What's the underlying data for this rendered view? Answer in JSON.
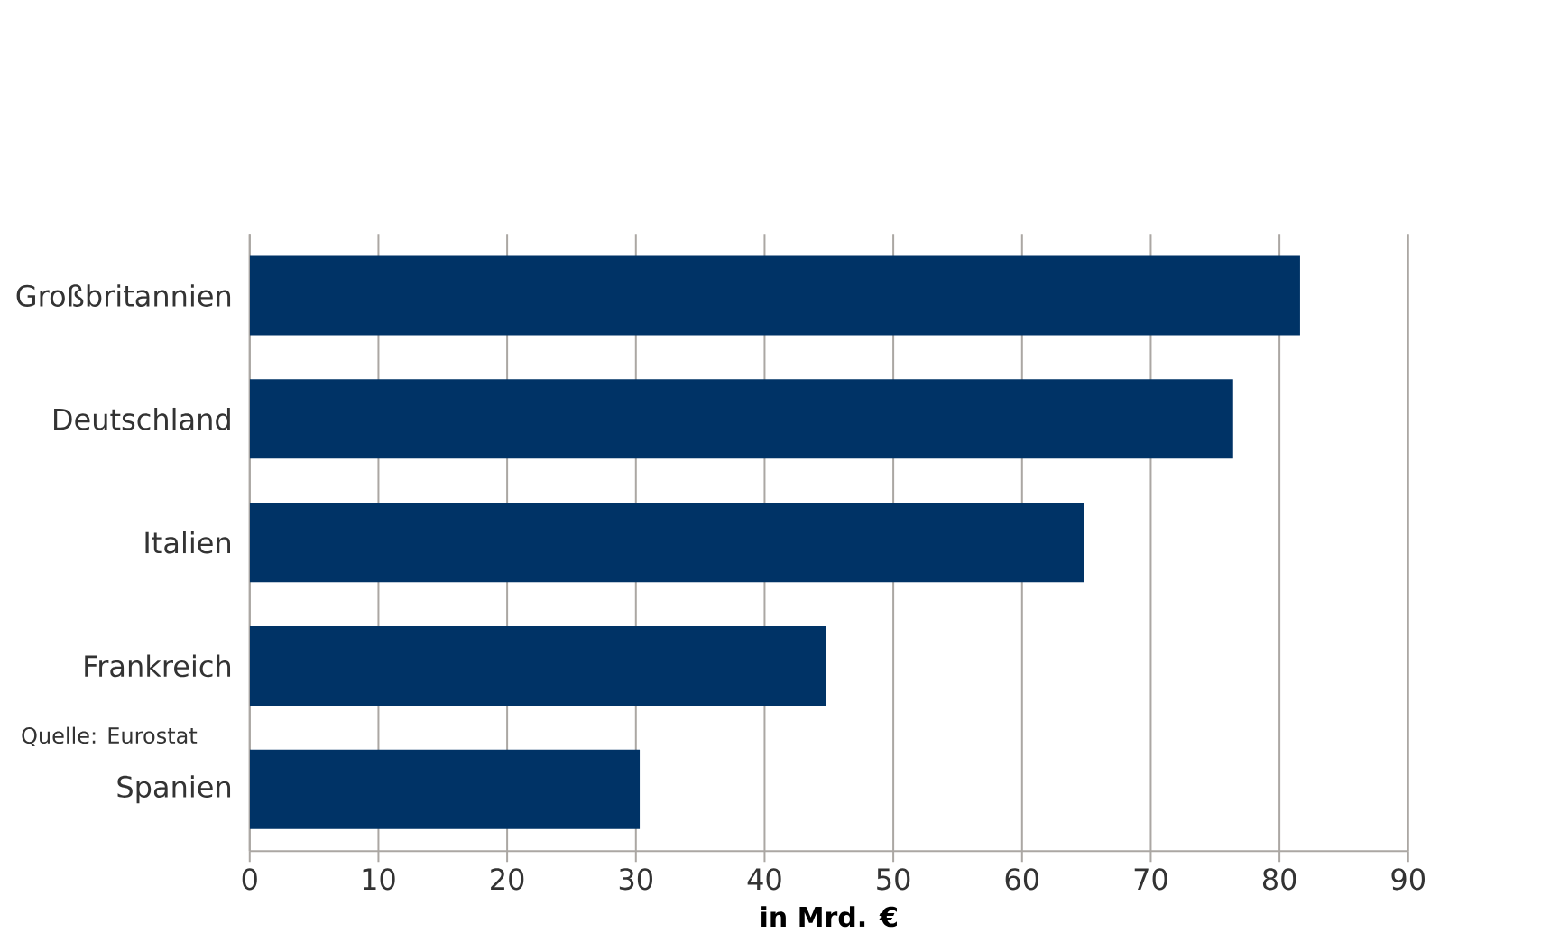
{
  "chart_data": {
    "type": "bar",
    "orientation": "horizontal",
    "xlabel": "in Mrd. €",
    "annotations": [
      "Quelle: Eurostat"
    ],
    "categories": [
      "Großbritannien",
      "Deutschland",
      "Italien",
      "Frankreich",
      "Spanien"
    ],
    "values": [
      81.6,
      76.4,
      64.8,
      44.8,
      30.3
    ],
    "color": "#003366",
    "xlim": [
      0,
      90
    ],
    "xticks": [
      0,
      10,
      20,
      30,
      40,
      50,
      60,
      70,
      80,
      90
    ],
    "grid": "x"
  }
}
